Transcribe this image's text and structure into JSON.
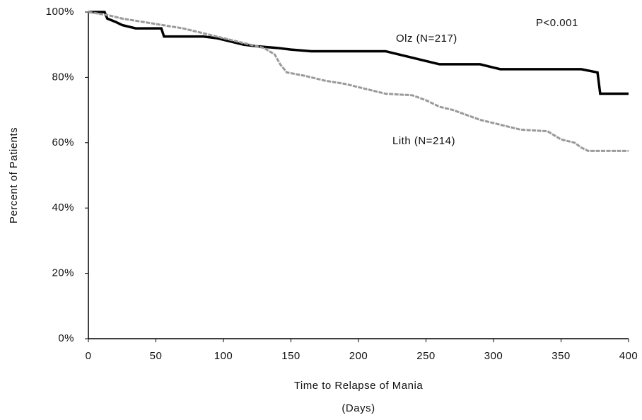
{
  "chart_data": {
    "type": "line",
    "xlabel": "Time to Relapse of Mania",
    "xlabel_unit": "(Days)",
    "ylabel": "Percent of Patients",
    "annotation": "P<0.001",
    "xlim": [
      0,
      400
    ],
    "xticks": [
      0,
      50,
      100,
      150,
      200,
      250,
      300,
      350,
      400
    ],
    "ylim": [
      0,
      100
    ],
    "yticks": [
      {
        "value": 0,
        "label": "0%"
      },
      {
        "value": 20,
        "label": "20%"
      },
      {
        "value": 40,
        "label": "40%"
      },
      {
        "value": 60,
        "label": "60%"
      },
      {
        "value": 80,
        "label": "80%"
      },
      {
        "value": 100,
        "label": "100%"
      }
    ],
    "series": [
      {
        "name": "Olz (N=217)",
        "color": "#000000",
        "x": [
          0,
          12,
          14,
          20,
          25,
          35,
          54,
          56,
          85,
          95,
          105,
          115,
          125,
          140,
          150,
          165,
          220,
          230,
          240,
          250,
          260,
          290,
          300,
          305,
          365,
          377,
          379,
          400
        ],
        "values": [
          100,
          100,
          98,
          97,
          96,
          95,
          95,
          92.5,
          92.5,
          92,
          91,
          90,
          89.5,
          89,
          88.5,
          88,
          88,
          87,
          86,
          85,
          84,
          84,
          83,
          82.5,
          82.5,
          81.5,
          75,
          75
        ]
      },
      {
        "name": "Lith (N=214)",
        "color": "#9a9a9a",
        "x": [
          0,
          15,
          25,
          40,
          55,
          70,
          80,
          95,
          110,
          120,
          130,
          138,
          142,
          147,
          160,
          175,
          190,
          205,
          220,
          240,
          250,
          260,
          270,
          280,
          290,
          300,
          310,
          320,
          340,
          350,
          360,
          365,
          370,
          400
        ],
        "values": [
          100,
          99,
          98,
          97,
          96,
          95,
          94,
          92.5,
          91,
          90,
          89,
          87,
          84,
          81.5,
          80.5,
          79,
          78,
          76.5,
          75,
          74.5,
          73,
          71,
          70,
          68.5,
          67,
          66,
          65,
          64,
          63.5,
          61,
          60,
          58.5,
          57.5,
          57.5
        ]
      }
    ]
  }
}
